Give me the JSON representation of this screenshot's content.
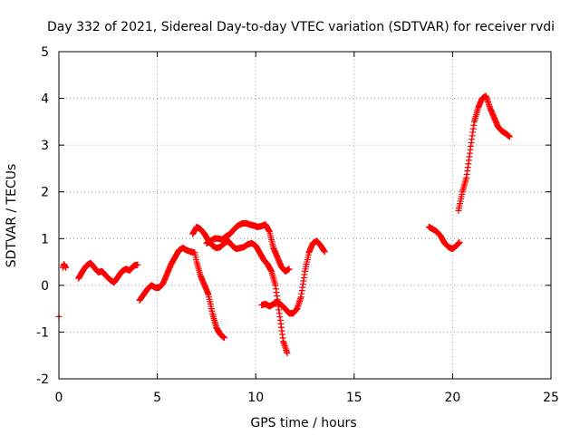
{
  "chart_data": {
    "type": "scatter",
    "title": "Day 332 of 2021, Sidereal Day-to-day VTEC variation (SDTVAR) for receiver rvdi",
    "xlabel": "GPS time / hours",
    "ylabel": "SDTVAR / TECUs",
    "xlim": [
      0,
      25
    ],
    "ylim": [
      -2,
      5
    ],
    "x_ticks": [
      0,
      5,
      10,
      15,
      20,
      25
    ],
    "y_ticks": [
      -2,
      -1,
      0,
      1,
      2,
      3,
      4,
      5
    ],
    "grid": true,
    "marker": "plus",
    "colors": {
      "series": "#ff0000",
      "axes": "#000000",
      "grid": "#a0a0a0"
    },
    "series": [
      {
        "segments": [
          {
            "x": [
              0.0
            ],
            "y": [
              -0.67
            ]
          },
          {
            "x": [
              0.2,
              0.25,
              0.3,
              0.35
            ],
            "y": [
              0.38,
              0.45,
              0.42,
              0.38
            ]
          },
          {
            "x": [
              1.0,
              1.2,
              1.4,
              1.6,
              1.8,
              2.0,
              2.2,
              2.4,
              2.6,
              2.8,
              3.0,
              3.2,
              3.4,
              3.6,
              3.8,
              4.0
            ],
            "y": [
              0.15,
              0.3,
              0.42,
              0.48,
              0.38,
              0.28,
              0.3,
              0.2,
              0.12,
              0.06,
              0.18,
              0.3,
              0.35,
              0.32,
              0.42,
              0.44
            ]
          },
          {
            "x": [
              4.1,
              4.3,
              4.5,
              4.7,
              4.9,
              5.1,
              5.3,
              5.5,
              5.7,
              5.9,
              6.1,
              6.3,
              6.5,
              6.7,
              6.9,
              7.0,
              7.2,
              7.4,
              7.6,
              7.8,
              8.0,
              8.2,
              8.4
            ],
            "y": [
              -0.32,
              -0.2,
              -0.08,
              0.0,
              -0.05,
              -0.05,
              0.05,
              0.25,
              0.45,
              0.6,
              0.75,
              0.8,
              0.75,
              0.72,
              0.7,
              0.5,
              0.2,
              0.0,
              -0.2,
              -0.6,
              -0.9,
              -1.05,
              -1.12
            ]
          },
          {
            "x": [
              6.8,
              7.0,
              7.2,
              7.4,
              7.6,
              7.8,
              8.0,
              8.2,
              8.4,
              8.6,
              8.8,
              9.0,
              9.2,
              9.4,
              9.6,
              9.8,
              10.0,
              10.2,
              10.4,
              10.6,
              10.8,
              11.0,
              11.2,
              11.4,
              11.6
            ],
            "y": [
              1.1,
              1.25,
              1.2,
              1.1,
              0.95,
              0.85,
              0.8,
              0.82,
              0.9,
              0.95,
              0.85,
              0.78,
              0.8,
              0.82,
              0.88,
              0.9,
              0.85,
              0.7,
              0.55,
              0.45,
              0.3,
              0.0,
              -0.6,
              -1.2,
              -1.45
            ]
          },
          {
            "x": [
              7.5,
              7.7,
              7.9,
              8.1,
              8.3,
              8.5,
              8.7,
              8.9,
              9.1,
              9.3,
              9.5,
              9.7,
              9.9,
              10.1,
              10.3,
              10.5,
              10.7,
              10.9,
              11.1,
              11.3,
              11.5,
              11.7
            ],
            "y": [
              0.9,
              0.95,
              1.0,
              1.0,
              0.98,
              1.05,
              1.1,
              1.2,
              1.28,
              1.32,
              1.33,
              1.3,
              1.28,
              1.25,
              1.27,
              1.3,
              1.15,
              0.8,
              0.6,
              0.4,
              0.3,
              0.35
            ]
          },
          {
            "x": [
              10.3,
              10.5,
              10.7,
              10.9,
              11.1,
              11.3,
              11.5,
              11.7,
              11.9,
              12.1,
              12.3,
              12.5,
              12.7,
              12.9,
              13.1,
              13.3,
              13.5
            ],
            "y": [
              -0.42,
              -0.4,
              -0.45,
              -0.4,
              -0.35,
              -0.42,
              -0.5,
              -0.6,
              -0.6,
              -0.5,
              -0.25,
              0.3,
              0.7,
              0.9,
              0.95,
              0.85,
              0.72
            ]
          },
          {
            "x": [
              18.8,
              19.0,
              19.2,
              19.4,
              19.6,
              19.8,
              20.0,
              20.2,
              20.35
            ],
            "y": [
              1.25,
              1.2,
              1.15,
              1.05,
              0.9,
              0.82,
              0.78,
              0.85,
              0.92
            ]
          },
          {
            "x": [
              20.3,
              20.5,
              20.7,
              20.9,
              21.1,
              21.3,
              21.5,
              21.7,
              21.9,
              22.1,
              22.3,
              22.5,
              22.7,
              22.9
            ],
            "y": [
              1.6,
              2.0,
              2.3,
              2.9,
              3.5,
              3.8,
              4.0,
              4.05,
              3.8,
              3.6,
              3.4,
              3.3,
              3.25,
              3.18
            ]
          }
        ]
      }
    ]
  }
}
